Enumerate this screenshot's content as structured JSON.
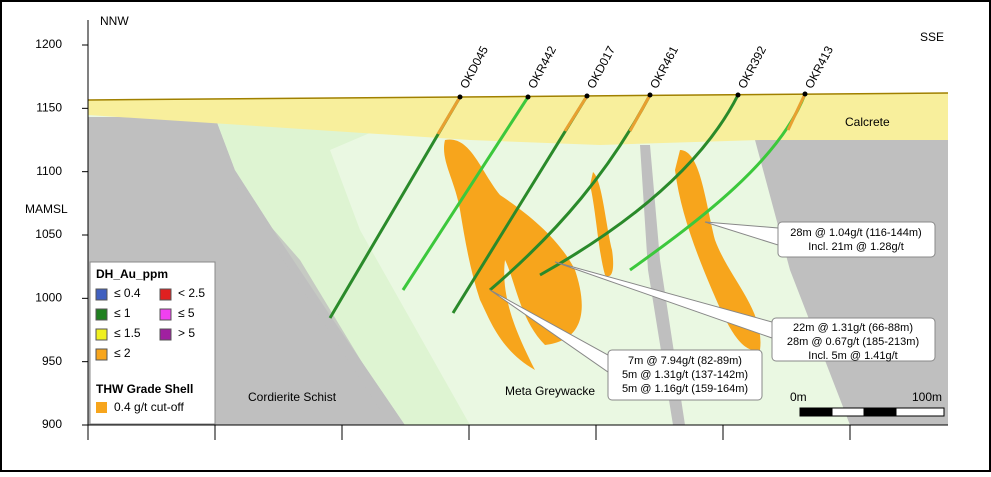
{
  "header": {
    "left": "NNW",
    "right": "SSE"
  },
  "axis": {
    "label": "MAMSL",
    "ticks": [
      1200,
      1150,
      1100,
      1050,
      1000,
      950,
      900
    ]
  },
  "drillholes": [
    "OKD045",
    "OKR442",
    "OKD017",
    "OKR461",
    "OKR392",
    "OKR413"
  ],
  "units": {
    "calcrete": "Calcrete",
    "schist": "Cordierite Schist",
    "greywacke": "Meta Greywacke"
  },
  "legend": {
    "title": "DH_Au_ppm",
    "entries": [
      "≤ 0.4",
      "< 2.5",
      "≤ 1",
      "≤ 5",
      "≤ 1.5",
      "> 5",
      "≤ 2"
    ],
    "shell_title": "THW Grade Shell",
    "shell_entry": "0.4 g/t cut-off"
  },
  "callouts": [
    [
      "28m @ 1.04g/t (116-144m)",
      "Incl. 21m @ 1.28g/t"
    ],
    [
      "22m @ 1.31g/t (66-88m)",
      "28m @ 0.67g/t (185-213m)",
      "Incl. 5m @ 1.41g/t"
    ],
    [
      "7m @ 7.94g/t (82-89m)",
      "5m @ 1.31g/t (137-142m)",
      "5m @ 1.16g/t (159-164m)"
    ]
  ],
  "scale": {
    "start": "0m",
    "end": "100m"
  }
}
